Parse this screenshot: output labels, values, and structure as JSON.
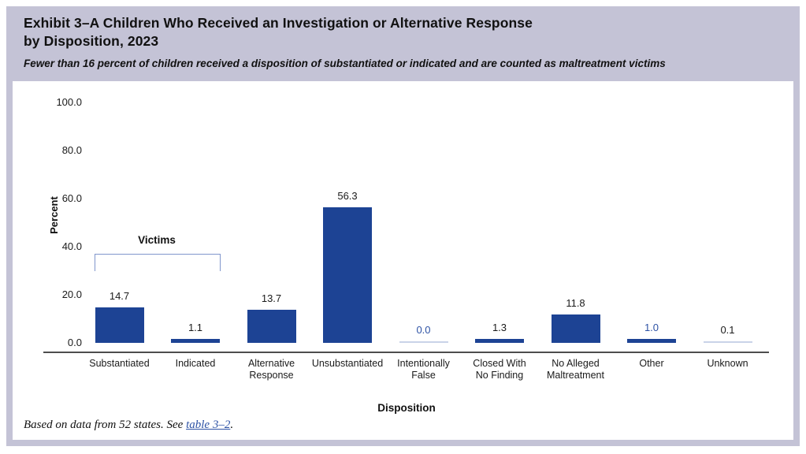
{
  "header": {
    "title_lines": [
      "Exhibit 3–A Children Who Received an Investigation or Alternative Response",
      "by Disposition, 2023"
    ],
    "subtitle": "Fewer than 16 percent of children received a disposition of substantiated or indicated and are counted as maltreatment victims"
  },
  "chart_data": {
    "type": "bar",
    "title": "Children Who Received an Investigation or Alternative Response by Disposition, 2023",
    "xlabel": "Disposition",
    "ylabel": "Percent",
    "ylim": [
      0,
      100
    ],
    "yticks": [
      "0.0",
      "20.0",
      "40.0",
      "60.0",
      "80.0",
      "100.0"
    ],
    "grid": false,
    "legend": "none",
    "categories": [
      "Substantiated",
      "Indicated",
      "Alternative Response",
      "Unsubstantiated",
      "Intentionally False",
      "Closed With No Finding",
      "No Alleged Maltreatment",
      "Other",
      "Unknown"
    ],
    "values": [
      14.7,
      1.1,
      13.7,
      56.3,
      0.0,
      1.3,
      11.8,
      1.0,
      0.1
    ],
    "bars": [
      {
        "label_lines": [
          "Substantiated"
        ],
        "value": 14.7,
        "value_label": "14.7",
        "label_style": "dark",
        "bar_style": "solid"
      },
      {
        "label_lines": [
          "Indicated"
        ],
        "value": 1.1,
        "value_label": "1.1",
        "label_style": "dark",
        "bar_style": "solid"
      },
      {
        "label_lines": [
          "Alternative",
          "Response"
        ],
        "value": 13.7,
        "value_label": "13.7",
        "label_style": "dark",
        "bar_style": "solid"
      },
      {
        "label_lines": [
          "Unsubstantiated"
        ],
        "value": 56.3,
        "value_label": "56.3",
        "label_style": "dark",
        "bar_style": "solid"
      },
      {
        "label_lines": [
          "Intentionally",
          "False"
        ],
        "value": 0.0,
        "value_label": "0.0",
        "label_style": "blue",
        "bar_style": "faint"
      },
      {
        "label_lines": [
          "Closed With",
          "No Finding"
        ],
        "value": 1.3,
        "value_label": "1.3",
        "label_style": "dark",
        "bar_style": "solid"
      },
      {
        "label_lines": [
          "No Alleged",
          "Maltreatment"
        ],
        "value": 11.8,
        "value_label": "11.8",
        "label_style": "dark",
        "bar_style": "solid"
      },
      {
        "label_lines": [
          "Other"
        ],
        "value": 1.0,
        "value_label": "1.0",
        "label_style": "blue",
        "bar_style": "solid"
      },
      {
        "label_lines": [
          "Unknown"
        ],
        "value": 0.1,
        "value_label": "0.1",
        "label_style": "dark",
        "bar_style": "faint"
      }
    ],
    "annotation": {
      "label": "Victims",
      "spans": [
        "Substantiated",
        "Indicated"
      ]
    }
  },
  "colors": {
    "exhibit_bg": "#c4c3d6",
    "bar": "#1d4394",
    "faint_bar": "#c9d3e8",
    "dark_value_label": "#1a1a1a",
    "blue_value_label": "#2d52a5",
    "bracket": "#8096cc",
    "axis_line": "#4d4d4d",
    "link": "#2d52a5"
  },
  "footnote": {
    "prefix": "Based on data from 52 states. See ",
    "link_text": "table 3–2",
    "suffix": "."
  }
}
